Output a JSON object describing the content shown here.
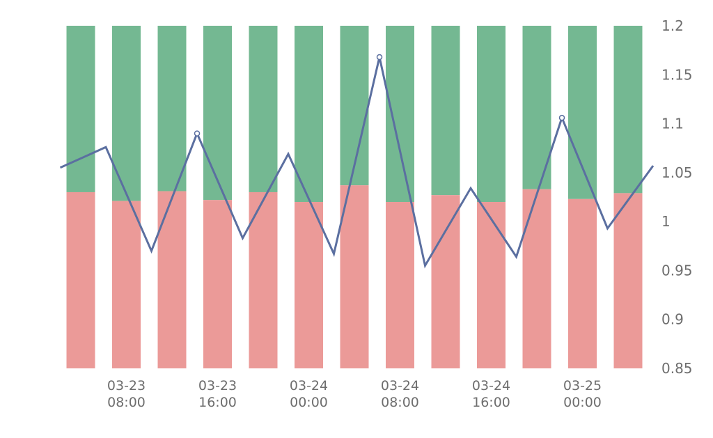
{
  "chart_data": {
    "type": "bar",
    "stacked": true,
    "y_axis_position": "right",
    "grid": false,
    "ylim": [
      0.85,
      1.2
    ],
    "yticks": [
      "1.2",
      "1.15",
      "1.1",
      "1.05",
      "1",
      "0.95",
      "0.9",
      "0.85"
    ],
    "x_ticks": [
      {
        "index": 1,
        "date": "03-23",
        "time": "08:00"
      },
      {
        "index": 3,
        "date": "03-23",
        "time": "16:00"
      },
      {
        "index": 5,
        "date": "03-24",
        "time": "00:00"
      },
      {
        "index": 7,
        "date": "03-24",
        "time": "08:00"
      },
      {
        "index": 9,
        "date": "03-24",
        "time": "16:00"
      },
      {
        "index": 11,
        "date": "03-25",
        "time": "00:00"
      }
    ],
    "bar_count": 13,
    "series": [
      {
        "type": "bar",
        "stack": "lower",
        "color": "#eb9a98",
        "values": [
          1.03,
          1.021,
          1.031,
          1.022,
          1.03,
          1.02,
          1.037,
          1.02,
          1.027,
          1.02,
          1.033,
          1.023,
          1.029
        ]
      },
      {
        "type": "bar",
        "stack": "upper",
        "color": "#74b892",
        "top": 1.2
      },
      {
        "type": "line",
        "color": "#5b6fa0",
        "x_start": -0.45,
        "values": [
          1.055,
          1.076,
          0.97,
          1.09,
          0.983,
          1.069,
          0.967,
          1.168,
          0.955,
          1.034,
          0.964,
          1.106,
          0.993,
          1.057
        ],
        "markers_at": [
          3,
          7,
          11
        ]
      }
    ]
  }
}
